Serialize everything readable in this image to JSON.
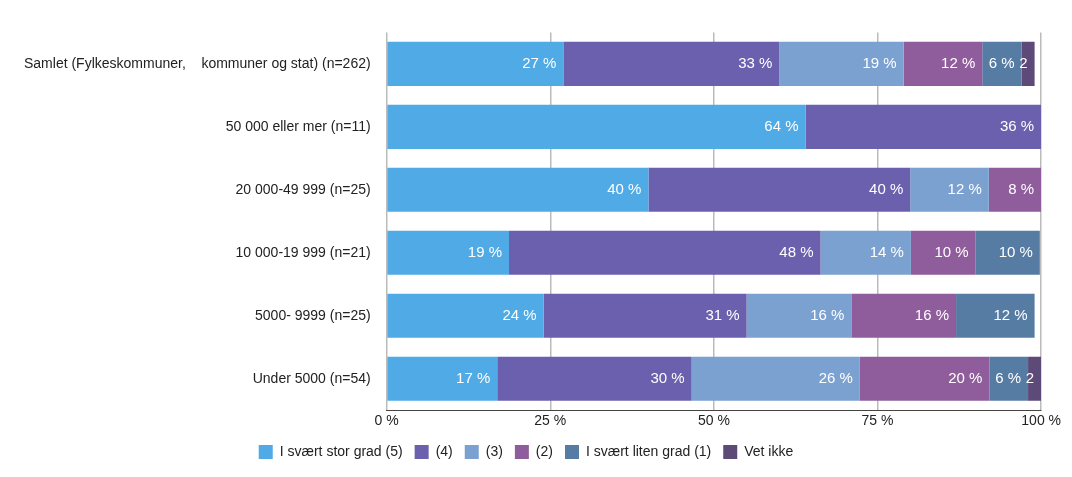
{
  "chart_data": {
    "type": "bar",
    "orientation": "horizontal",
    "stacked": true,
    "categories": [
      "Samlet (Fylkeskommuner,    kommuner og stat) (n=262)",
      "50 000 eller mer (n=11)",
      "20 000-49 999 (n=25)",
      "10 000-19 999 (n=21)",
      "5000- 9999 (n=25)",
      "Under 5000 (n=54)"
    ],
    "series": [
      {
        "name": "I svært stor grad (5)",
        "color": "#4faae6",
        "values": [
          27,
          64,
          40,
          18.7,
          24,
          16.9
        ],
        "value_labels": [
          "27 %",
          "64 %",
          "40 %",
          "19 %",
          "24 %",
          "17 %"
        ]
      },
      {
        "name": "(4)",
        "color": "#6a60ae",
        "values": [
          33,
          36,
          40,
          47.6,
          31,
          29.7
        ],
        "value_labels": [
          "33 %",
          "36 %",
          "40 %",
          "48 %",
          "31 %",
          "30 %"
        ]
      },
      {
        "name": "(3)",
        "color": "#7aa1d0",
        "values": [
          19,
          null,
          12,
          13.8,
          16,
          25.7
        ],
        "value_labels": [
          "19 %",
          null,
          "12 %",
          "14 %",
          "16 %",
          "26 %"
        ]
      },
      {
        "name": "(2)",
        "color": "#8f5d9b",
        "values": [
          12,
          null,
          8,
          9.9,
          16,
          19.8
        ],
        "value_labels": [
          "12 %",
          null,
          "8 %",
          "10 %",
          "16 %",
          "20 %"
        ]
      },
      {
        "name": "I svært liten grad (1)",
        "color": "#567ca4",
        "values": [
          6,
          null,
          null,
          9.8,
          12,
          5.9
        ],
        "value_labels": [
          "6 %",
          null,
          null,
          "10 %",
          "12 %",
          "6 %"
        ]
      },
      {
        "name": "Vet ikke",
        "color": "#5e4a78",
        "values": [
          2,
          null,
          null,
          null,
          null,
          2
        ],
        "value_labels": [
          "2",
          null,
          null,
          null,
          null,
          "2"
        ]
      }
    ],
    "xlim": [
      0,
      100
    ],
    "xticks": [
      {
        "value": 0,
        "label": "0 %"
      },
      {
        "value": 25,
        "label": "25 %"
      },
      {
        "value": 50,
        "label": "50 %"
      },
      {
        "value": 75,
        "label": "75 %"
      },
      {
        "value": 100,
        "label": "100 %"
      }
    ],
    "grid": "x",
    "legend": "bottom"
  }
}
